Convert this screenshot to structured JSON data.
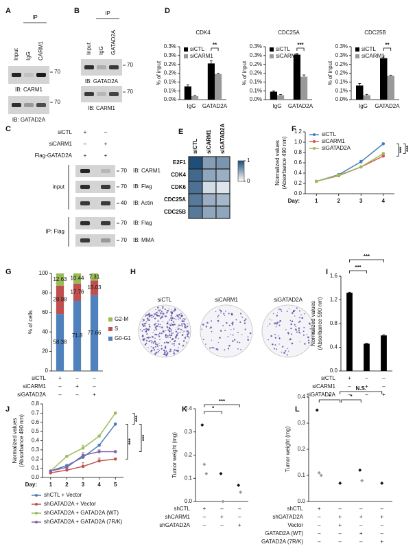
{
  "blot_panels": [
    {
      "label": "A",
      "ip": "IP",
      "lanes": [
        "Input",
        "IgG",
        "CARM1"
      ],
      "blots": [
        {
          "ib": "IB: CARM1",
          "marker": 70
        },
        {
          "ib": "IB: GATAD2A",
          "marker": 70
        }
      ]
    },
    {
      "label": "B",
      "ip": "IP",
      "lanes": [
        "Input",
        "IgG",
        "GATAD2A"
      ],
      "blots": [
        {
          "ib": "IB: GATAD2A",
          "marker": 70
        },
        {
          "ib": "IB: CARM1",
          "marker": 70
        }
      ]
    }
  ],
  "panel_c": {
    "label": "C",
    "conditions": [
      {
        "name": "siCTL",
        "signs": [
          "+",
          "–"
        ]
      },
      {
        "name": "siCARM1",
        "signs": [
          "–",
          "+"
        ]
      },
      {
        "name": "Flag-GATAD2A",
        "signs": [
          "+",
          "+"
        ]
      }
    ],
    "groups": [
      {
        "name": "input",
        "blots": [
          {
            "ib": "IB: CARM1",
            "marker": 70
          },
          {
            "ib": "IB: Flag",
            "marker": 70
          },
          {
            "ib": "IB: Actin",
            "marker": 40
          }
        ]
      },
      {
        "name": "IP: Flag",
        "blots": [
          {
            "ib": "IB: Flag",
            "marker": 70
          },
          {
            "ib": "IB: MMA",
            "marker": 70
          }
        ]
      }
    ]
  },
  "panel_h": {
    "label": "H",
    "plates": [
      "siCTL",
      "siCARM1",
      "siGATAD2A"
    ]
  },
  "chart_data": [
    {
      "label": "D",
      "type": "bar",
      "title": "CDK4",
      "ylabel": "% of input",
      "categories": [
        "IgG",
        "GATAD2A"
      ],
      "series": [
        {
          "name": "siCTL",
          "color": "#000000",
          "values": [
            0.075,
            0.205
          ],
          "errors": [
            0.008,
            0.015
          ]
        },
        {
          "name": "siCARM1",
          "color": "#999999",
          "values": [
            0.02,
            0.145
          ],
          "errors": [
            0.004,
            0.005
          ]
        }
      ],
      "ylim": [
        0,
        0.3
      ],
      "yticks": [
        {
          "value": 0,
          "label": "0.0%"
        },
        {
          "value": 0.05,
          "label": "0.1%"
        },
        {
          "value": 0.1,
          "label": "0.1%"
        },
        {
          "value": 0.15,
          "label": "0.2%"
        },
        {
          "value": 0.2,
          "label": "0.2%"
        },
        {
          "value": 0.25,
          "label": "0.3%"
        },
        {
          "value": 0.3,
          "label": "0.3%"
        }
      ],
      "legend": "upper left",
      "significance": [
        "**"
      ]
    },
    {
      "type": "bar",
      "title": "CDC25A",
      "ylabel": "% of input",
      "categories": [
        "IgG",
        "GATAD2A"
      ],
      "series": [
        {
          "name": "siCTL",
          "color": "#000000",
          "values": [
            0.045,
            0.255
          ],
          "errors": [
            0.005,
            0.006
          ]
        },
        {
          "name": "siCARM1",
          "color": "#999999",
          "values": [
            0.025,
            0.13
          ],
          "errors": [
            0.004,
            0.01
          ]
        }
      ],
      "ylim": [
        0,
        0.3
      ],
      "yticks": [
        {
          "value": 0,
          "label": "0.0%"
        },
        {
          "value": 0.05,
          "label": "0.1%"
        },
        {
          "value": 0.1,
          "label": "0.1%"
        },
        {
          "value": 0.15,
          "label": "0.2%"
        },
        {
          "value": 0.2,
          "label": "0.2%"
        },
        {
          "value": 0.25,
          "label": "0.3%"
        },
        {
          "value": 0.3,
          "label": "0.3%"
        }
      ],
      "legend": "upper left",
      "significance": [
        "***"
      ]
    },
    {
      "type": "bar",
      "title": "CDC25B",
      "ylabel": "% of input",
      "categories": [
        "IgG",
        "GATAD2A"
      ],
      "series": [
        {
          "name": "siCTL",
          "color": "#000000",
          "values": [
            0.08,
            0.235
          ],
          "errors": [
            0.012,
            0.012
          ]
        },
        {
          "name": "siCARM1",
          "color": "#999999",
          "values": [
            0.025,
            0.135
          ],
          "errors": [
            0.005,
            0.004
          ]
        }
      ],
      "ylim": [
        0,
        0.3
      ],
      "yticks": [
        {
          "value": 0,
          "label": "0.0%"
        },
        {
          "value": 0.05,
          "label": "0.1%"
        },
        {
          "value": 0.1,
          "label": "0.1%"
        },
        {
          "value": 0.15,
          "label": "0.2%"
        },
        {
          "value": 0.2,
          "label": "0.2%"
        },
        {
          "value": 0.25,
          "label": "0.3%"
        },
        {
          "value": 0.3,
          "label": "0.3%"
        }
      ],
      "legend": "upper left",
      "significance": [
        "**"
      ]
    },
    {
      "label": "E",
      "type": "heatmap",
      "columns": [
        "siCTL",
        "siCARM1",
        "siGATAD2A"
      ],
      "rows": [
        "E2F1",
        "CDK4",
        "CDK6",
        "CDC25A",
        "CDC25B"
      ],
      "values": [
        [
          1,
          0.55,
          0.6
        ],
        [
          0.85,
          0.5,
          0.45
        ],
        [
          0.8,
          0.2,
          0.15
        ],
        [
          0.75,
          0.45,
          0.4
        ],
        [
          0.75,
          0.5,
          0.5
        ]
      ],
      "colorbar_ticks": [
        0,
        1
      ],
      "color": "#1f4e79"
    },
    {
      "label": "F",
      "type": "line",
      "ylabel": [
        "Normalized values",
        "(Absorbance 490 nm)"
      ],
      "xlabel": "Day:",
      "x": [
        1,
        2,
        3,
        4
      ],
      "xlim": [
        0.5,
        4.5
      ],
      "xticks": [
        1,
        2,
        3,
        4
      ],
      "series": [
        {
          "name": "siCTL",
          "color": "#4a7ebb",
          "values": [
            0.24,
            0.37,
            0.62,
            0.97
          ],
          "errors": [
            0.01,
            0.01,
            0.03,
            0.01
          ]
        },
        {
          "name": "siCARM1",
          "color": "#d9534f",
          "values": [
            0.24,
            0.35,
            0.52,
            0.73
          ],
          "errors": [
            0.01,
            0.01,
            0.01,
            0.02
          ]
        },
        {
          "name": "siGATAD2A",
          "color": "#9bbb59",
          "values": [
            0.24,
            0.36,
            0.52,
            0.78
          ],
          "errors": [
            0.01,
            0.01,
            0.01,
            0.02
          ]
        }
      ],
      "ylim": [
        0,
        1.2
      ],
      "yticks": [
        {
          "value": 0,
          "label": "0.0"
        },
        0.2,
        0.4,
        0.6,
        0.8,
        {
          "value": 1,
          "label": "1.0"
        },
        1.2
      ],
      "legend": "upper left",
      "significance": [
        "***",
        "***"
      ]
    },
    {
      "label": "G",
      "type": "stacked_bar",
      "ylabel": "% of cells",
      "series": [
        {
          "name": "G0-G1",
          "color": "#4f81bd",
          "values": [
            58.38,
            71.8,
            77.66
          ]
        },
        {
          "name": "S",
          "color": "#c0504d",
          "values": [
            28.98,
            17.76,
            15.03
          ]
        },
        {
          "name": "G2-M",
          "color": "#9bbb59",
          "values": [
            12.63,
            10.44,
            7.31
          ]
        }
      ],
      "ylim": [
        0,
        100
      ],
      "yticks": [
        0,
        20,
        40,
        60,
        80,
        100
      ],
      "legend": "right",
      "conditions": [
        {
          "name": "siCTL",
          "signs": [
            "+",
            "–",
            "–"
          ]
        },
        {
          "name": "siCARM1",
          "signs": [
            "–",
            "+",
            "–"
          ]
        },
        {
          "name": "siGATAD2A",
          "signs": [
            "–",
            "–",
            "+"
          ]
        }
      ]
    },
    {
      "label": "I",
      "type": "bar",
      "ylabel": [
        "Normalized values",
        "(Absorbance 590 nm)"
      ],
      "values": [
        1.32,
        0.46,
        0.6
      ],
      "errors": [
        0.01,
        0.01,
        0.01
      ],
      "color": "#000000",
      "ylim": [
        0,
        1.6
      ],
      "yticks": [
        {
          "value": 0,
          "label": "0.0"
        },
        0.4,
        0.8,
        1.2,
        1.6
      ],
      "significance": [
        "***",
        "***"
      ],
      "conditions": [
        {
          "name": "siCTL",
          "signs": [
            "+",
            "–",
            "–"
          ]
        },
        {
          "name": "siCARM1",
          "signs": [
            "–",
            "+",
            "–"
          ]
        },
        {
          "name": "siGATAD2A",
          "signs": [
            "–",
            "–",
            "+"
          ]
        }
      ]
    },
    {
      "label": "J",
      "type": "line",
      "ylabel": [
        "Normalized values",
        "(Absorbance 490 nm)"
      ],
      "xlabel": "Day:",
      "x": [
        1,
        2,
        3,
        4,
        5
      ],
      "xlim": [
        0.5,
        5.5
      ],
      "xticks": [
        1,
        2,
        3,
        4,
        5
      ],
      "series": [
        {
          "name": "shCTL + Vector",
          "color": "#4a7ebb",
          "values": [
            0.07,
            0.13,
            0.22,
            0.35,
            0.58
          ],
          "errors": [
            0.01,
            0.01,
            0.02,
            0.01,
            0.01
          ]
        },
        {
          "name": "shGATAD2A + Vector",
          "color": "#c0504d",
          "values": [
            0.05,
            0.08,
            0.12,
            0.18,
            0.2
          ],
          "errors": [
            0.01,
            0.02,
            0.04,
            0.03,
            0.01
          ]
        },
        {
          "name": "shGATAD2A + GATAD2A (WT)",
          "color": "#9bbb59",
          "values": [
            0.07,
            0.23,
            0.32,
            0.45,
            0.7
          ],
          "errors": [
            0.01,
            0.01,
            0.03,
            0.01,
            0.01
          ]
        },
        {
          "name": "shGATAD2A + GATAD2A (7R/K)",
          "color": "#8064a2",
          "values": [
            0.07,
            0.11,
            0.24,
            0.28,
            0.28
          ],
          "errors": [
            0.01,
            0.01,
            0.03,
            0.02,
            0.01
          ]
        }
      ],
      "ylim": [
        0,
        0.8
      ],
      "yticks": [
        {
          "value": 0,
          "label": "0.0"
        },
        0.1,
        0.2,
        0.3,
        0.4,
        0.5,
        0.6,
        0.7,
        0.8
      ],
      "legend": "below",
      "significance": [
        "***",
        "***",
        "***"
      ]
    },
    {
      "label": "K",
      "type": "strip",
      "ylabel": "Tumor weight (mg)",
      "color": "#555555",
      "groups": [
        [
          0.33,
          0.16,
          0.12
        ],
        [
          0.12,
          0
        ],
        [
          0.07,
          0.04
        ]
      ],
      "ylim": [
        0,
        0.4
      ],
      "yticks": [
        {
          "value": 0,
          "label": "0.0"
        },
        0.1,
        0.2,
        0.3,
        0.4
      ],
      "significance": [
        "*",
        "***"
      ],
      "conditions": [
        {
          "name": "shCTL",
          "signs": [
            "+",
            "–",
            "–"
          ]
        },
        {
          "name": "shCARM1",
          "signs": [
            "–",
            "+",
            "–"
          ]
        },
        {
          "name": "shGATAD2A",
          "signs": [
            "–",
            "–",
            "+"
          ]
        }
      ]
    },
    {
      "label": "L",
      "type": "strip",
      "ylabel": "Tumor weight (mg)",
      "color": "#555555",
      "groups": [
        [
          0.35,
          0.11,
          0.1
        ],
        [
          0.07
        ],
        [
          0.12,
          0.08
        ],
        [
          0.07
        ]
      ],
      "ylim": [
        0,
        0.4
      ],
      "yticks": [
        {
          "value": 0,
          "label": "0.0"
        },
        0.1,
        0.2,
        0.3,
        0.4
      ],
      "significance": [
        "*",
        "*",
        "N.S."
      ],
      "conditions": [
        {
          "name": "shCTL",
          "signs": [
            "+",
            "–",
            "–",
            "–"
          ]
        },
        {
          "name": "shGATAD2A",
          "signs": [
            "–",
            "+",
            "+",
            "+"
          ]
        },
        {
          "name": "Vector",
          "signs": [
            "–",
            "+",
            "–",
            "–"
          ]
        },
        {
          "name": "GATAD2A (WT)",
          "signs": [
            "–",
            "–",
            "+",
            "–"
          ]
        },
        {
          "name": "GATAD2A (7R/K)",
          "signs": [
            "–",
            "–",
            "–",
            "+"
          ]
        }
      ]
    }
  ]
}
